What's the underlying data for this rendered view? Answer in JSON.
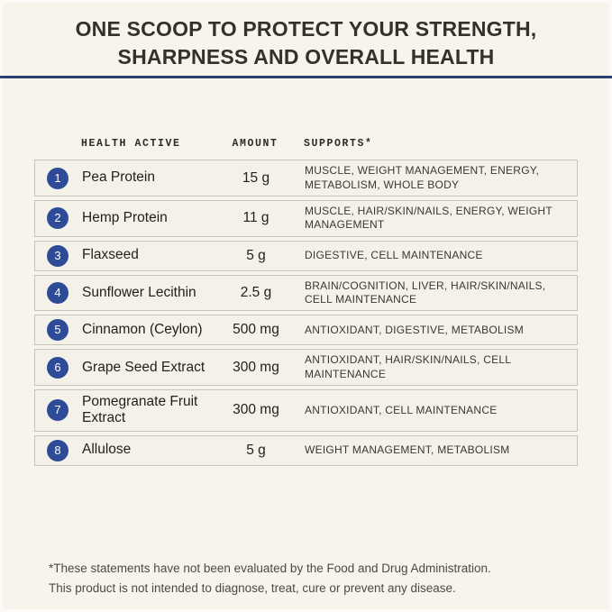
{
  "header": {
    "title_line1": "ONE SCOOP TO PROTECT YOUR STRENGTH,",
    "title_line2": "SHARPNESS AND OVERALL HEALTH"
  },
  "colors": {
    "background": "#f7f4ec",
    "divider_rule": "#2c3e6e",
    "number_badge": "#2d4b97",
    "row_fill": "#f4f1e9",
    "row_border": "#c7c4bb",
    "headline_text": "#32312c"
  },
  "table": {
    "columns": [
      "HEALTH ACTIVE",
      "AMOUNT",
      "SUPPORTS*"
    ],
    "rows": [
      {
        "number": "1",
        "name": "Pea Protein",
        "amount": "15 g",
        "supports": "MUSCLE, WEIGHT MANAGEMENT, ENERGY, METABOLISM, WHOLE BODY"
      },
      {
        "number": "2",
        "name": "Hemp Protein",
        "amount": "11 g",
        "supports": "MUSCLE, HAIR/SKIN/NAILS, ENERGY, WEIGHT MANAGEMENT"
      },
      {
        "number": "3",
        "name": "Flaxseed",
        "amount": "5 g",
        "supports": "DIGESTIVE, CELL MAINTENANCE"
      },
      {
        "number": "4",
        "name": "Sunflower Lecithin",
        "amount": "2.5 g",
        "supports": "BRAIN/COGNITION, LIVER, HAIR/SKIN/NAILS, CELL MAINTENANCE"
      },
      {
        "number": "5",
        "name": "Cinnamon (Ceylon)",
        "amount": "500 mg",
        "supports": "ANTIOXIDANT, DIGESTIVE, METABOLISM"
      },
      {
        "number": "6",
        "name": "Grape Seed Extract",
        "amount": "300 mg",
        "supports": "ANTIOXIDANT, HAIR/SKIN/NAILS, CELL MAINTENANCE"
      },
      {
        "number": "7",
        "name": "Pomegranate Fruit Extract",
        "amount": "300 mg",
        "supports": "ANTIOXIDANT, CELL MAINTENANCE"
      },
      {
        "number": "8",
        "name": "Allulose",
        "amount": "5 g",
        "supports": "WEIGHT MANAGEMENT, METABOLISM"
      }
    ]
  },
  "footer": {
    "line1": "*These statements have not been evaluated by the Food and Drug Administration.",
    "line2": "This product is not intended to diagnose, treat, cure or prevent any disease."
  }
}
